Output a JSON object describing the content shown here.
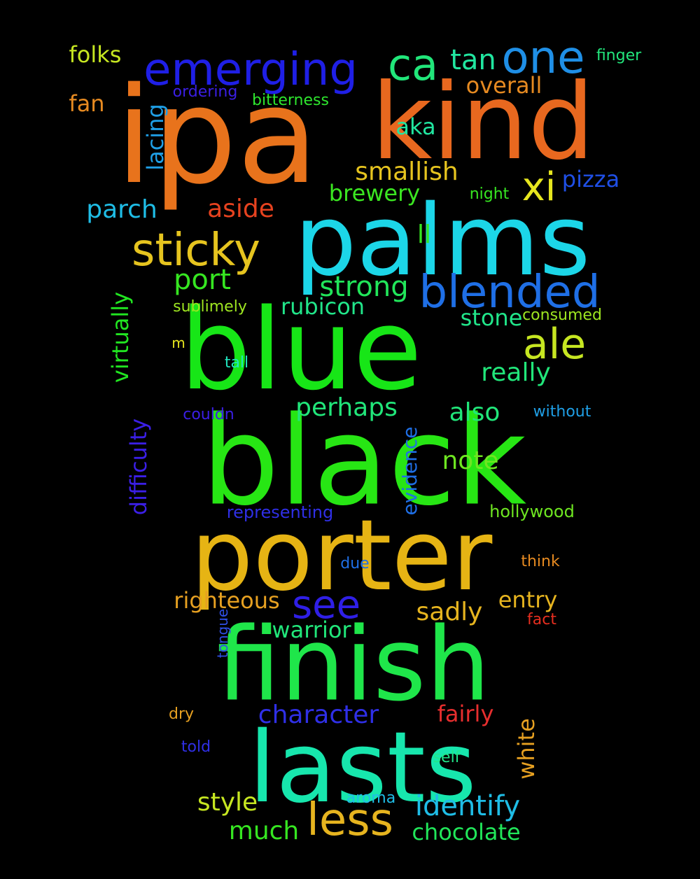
{
  "words": [
    {
      "text": "ipa",
      "color": "#e8731c"
    },
    {
      "text": "kind",
      "color": "#e8681f"
    },
    {
      "text": "palms",
      "color": "#1cd6e8"
    },
    {
      "text": "blue",
      "color": "#17e617"
    },
    {
      "text": "black",
      "color": "#27e614"
    },
    {
      "text": "porter",
      "color": "#e6b414"
    },
    {
      "text": "finish",
      "color": "#1fe64a"
    },
    {
      "text": "lasts",
      "color": "#17e6ad"
    },
    {
      "text": "emerging",
      "color": "#1f1fe6"
    },
    {
      "text": "ca",
      "color": "#21e67a"
    },
    {
      "text": "one",
      "color": "#1f8fe6"
    },
    {
      "text": "tan",
      "color": "#21e6a0"
    },
    {
      "text": "folks",
      "color": "#c6e621"
    },
    {
      "text": "finger",
      "color": "#22e67c"
    },
    {
      "text": "overall",
      "color": "#e68a21"
    },
    {
      "text": "ordering",
      "color": "#3b1fe6"
    },
    {
      "text": "bitterness",
      "color": "#2ee62e"
    },
    {
      "text": "fan",
      "color": "#e68a21"
    },
    {
      "text": "lacing",
      "color": "#1f9fe6"
    },
    {
      "text": "aka",
      "color": "#21e6a0"
    },
    {
      "text": "smallish",
      "color": "#e6c41f"
    },
    {
      "text": "xi",
      "color": "#e6e61f"
    },
    {
      "text": "pizza",
      "color": "#1f4fe6"
    },
    {
      "text": "brewery",
      "color": "#3be621"
    },
    {
      "text": "night",
      "color": "#36e621"
    },
    {
      "text": "parch",
      "color": "#1fbde6"
    },
    {
      "text": "aside",
      "color": "#e6421f"
    },
    {
      "text": "sticky",
      "color": "#e6c41f"
    },
    {
      "text": "ll",
      "color": "#36e621"
    },
    {
      "text": "port",
      "color": "#36e621"
    },
    {
      "text": "strong",
      "color": "#21e65a"
    },
    {
      "text": "blended",
      "color": "#1f6fe6"
    },
    {
      "text": "virtually",
      "color": "#21e621"
    },
    {
      "text": "sublimely",
      "color": "#9ee621"
    },
    {
      "text": "rubicon",
      "color": "#21e68a"
    },
    {
      "text": "stone",
      "color": "#21e68a"
    },
    {
      "text": "consumed",
      "color": "#9ee621"
    },
    {
      "text": "ale",
      "color": "#c6e621"
    },
    {
      "text": "m",
      "color": "#e6e61f"
    },
    {
      "text": "tall",
      "color": "#21e6c0"
    },
    {
      "text": "really",
      "color": "#21e67a"
    },
    {
      "text": "difficulty",
      "color": "#3b1fe6"
    },
    {
      "text": "perhaps",
      "color": "#21e67a"
    },
    {
      "text": "couldn",
      "color": "#3b1fe6"
    },
    {
      "text": "also",
      "color": "#21e67a"
    },
    {
      "text": "without",
      "color": "#1f9fe6"
    },
    {
      "text": "evidence",
      "color": "#1f6fe6"
    },
    {
      "text": "note",
      "color": "#6ee621"
    },
    {
      "text": "representing",
      "color": "#2f2fe6"
    },
    {
      "text": "hollywood",
      "color": "#6ee621"
    },
    {
      "text": "due",
      "color": "#1f6fe6"
    },
    {
      "text": "think",
      "color": "#e68a21"
    },
    {
      "text": "righteous",
      "color": "#e6a021"
    },
    {
      "text": "see",
      "color": "#2f1fe6"
    },
    {
      "text": "entry",
      "color": "#e6b41f"
    },
    {
      "text": "sadly",
      "color": "#e6b41f"
    },
    {
      "text": "warrior",
      "color": "#21e67a"
    },
    {
      "text": "fact",
      "color": "#e62e1f"
    },
    {
      "text": "tongue",
      "color": "#2f4fe6"
    },
    {
      "text": "character",
      "color": "#2f2fe6"
    },
    {
      "text": "fairly",
      "color": "#e62e2e"
    },
    {
      "text": "dry",
      "color": "#e6a021"
    },
    {
      "text": "white",
      "color": "#e6a021"
    },
    {
      "text": "told",
      "color": "#2f2fe6"
    },
    {
      "text": "self",
      "color": "#21e68a"
    },
    {
      "text": "style",
      "color": "#c6e621"
    },
    {
      "text": "aroma",
      "color": "#1fbde6"
    },
    {
      "text": "less",
      "color": "#e6b41f"
    },
    {
      "text": "identify",
      "color": "#1fbde6"
    },
    {
      "text": "much",
      "color": "#36e621"
    },
    {
      "text": "chocolate",
      "color": "#21e65a"
    }
  ]
}
